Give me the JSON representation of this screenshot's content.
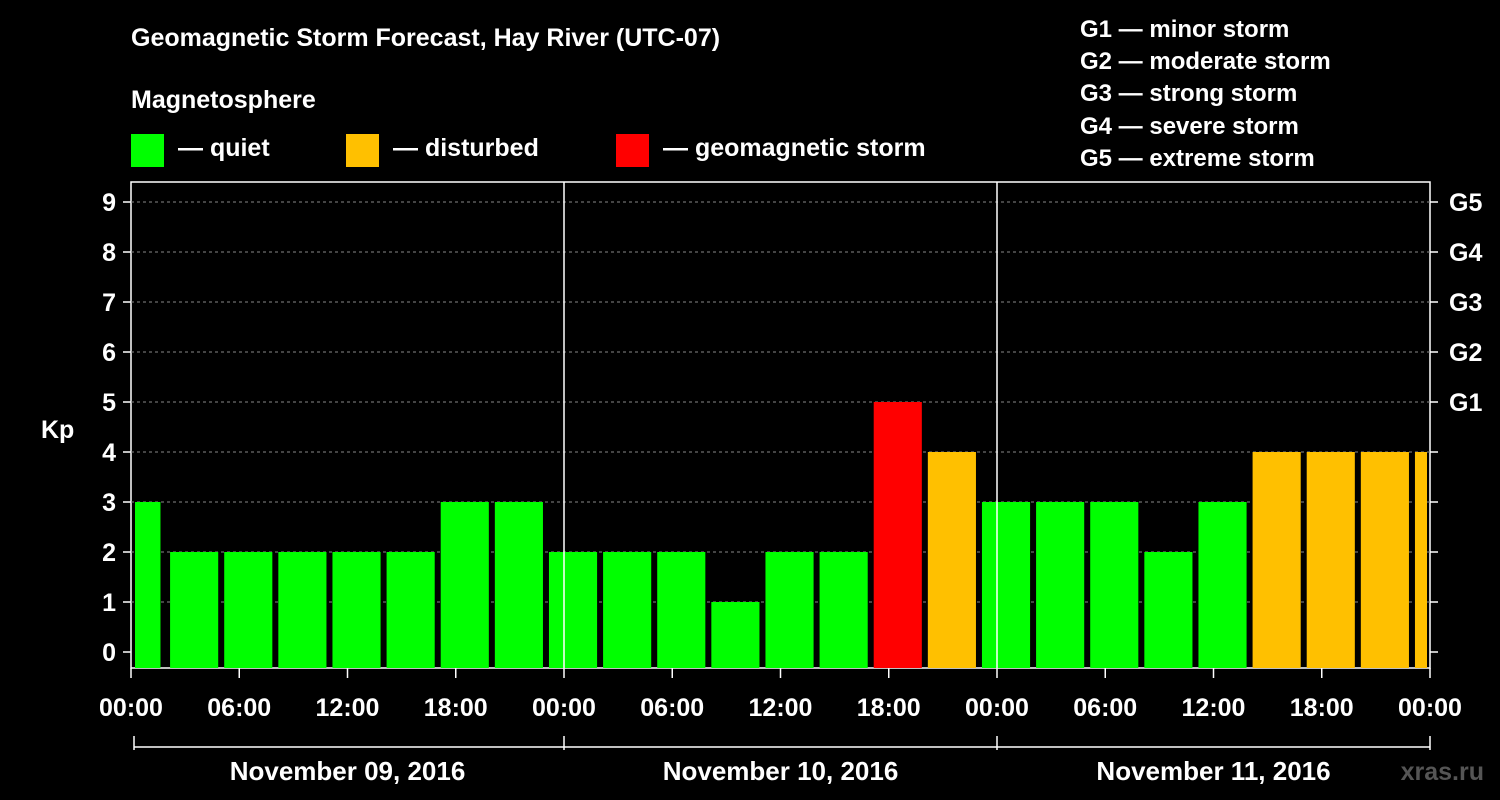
{
  "title": "Geomagnetic Storm Forecast, Hay River (UTC-07)",
  "legend": {
    "heading": "Magnetosphere",
    "items": [
      {
        "label": "— quiet",
        "color": "#00ff00"
      },
      {
        "label": "— disturbed",
        "color": "#ffc000"
      },
      {
        "label": "— geomagnetic storm",
        "color": "#ff0000"
      }
    ]
  },
  "storm_scale": [
    "G1 — minor storm",
    "G2 — moderate storm",
    "G3 — strong storm",
    "G4 — severe storm",
    "G5 — extreme storm"
  ],
  "watermark": "xras.ru",
  "chart_data": {
    "type": "bar",
    "ylabel": "Kp",
    "ylim": [
      0,
      9
    ],
    "yticks": [
      "0",
      "1",
      "2",
      "3",
      "4",
      "5",
      "6",
      "7",
      "8",
      "9"
    ],
    "right_ticks": [
      {
        "value": 5,
        "label": "G1"
      },
      {
        "value": 6,
        "label": "G2"
      },
      {
        "value": 7,
        "label": "G3"
      },
      {
        "value": 8,
        "label": "G4"
      },
      {
        "value": 9,
        "label": "G5"
      }
    ],
    "xtick_labels": [
      "00:00",
      "06:00",
      "12:00",
      "18:00",
      "00:00",
      "06:00",
      "12:00",
      "18:00",
      "00:00",
      "06:00",
      "12:00",
      "18:00",
      "00:00"
    ],
    "days": [
      "November 09, 2016",
      "November 10, 2016",
      "November 11, 2016"
    ],
    "grid": true,
    "bars": [
      {
        "start_hour": 0,
        "end_hour": 1.8,
        "kp": 3,
        "color": "#00ff00"
      },
      {
        "start_hour": 2,
        "end_hour": 5,
        "kp": 2,
        "color": "#00ff00"
      },
      {
        "start_hour": 5,
        "end_hour": 8,
        "kp": 2,
        "color": "#00ff00"
      },
      {
        "start_hour": 8,
        "end_hour": 11,
        "kp": 2,
        "color": "#00ff00"
      },
      {
        "start_hour": 11,
        "end_hour": 14,
        "kp": 2,
        "color": "#00ff00"
      },
      {
        "start_hour": 14,
        "end_hour": 17,
        "kp": 2,
        "color": "#00ff00"
      },
      {
        "start_hour": 17,
        "end_hour": 20,
        "kp": 3,
        "color": "#00ff00"
      },
      {
        "start_hour": 20,
        "end_hour": 23,
        "kp": 3,
        "color": "#00ff00"
      },
      {
        "start_hour": 23,
        "end_hour": 26,
        "kp": 2,
        "color": "#00ff00"
      },
      {
        "start_hour": 26,
        "end_hour": 29,
        "kp": 2,
        "color": "#00ff00"
      },
      {
        "start_hour": 29,
        "end_hour": 32,
        "kp": 2,
        "color": "#00ff00"
      },
      {
        "start_hour": 32,
        "end_hour": 35,
        "kp": 1,
        "color": "#00ff00"
      },
      {
        "start_hour": 35,
        "end_hour": 38,
        "kp": 2,
        "color": "#00ff00"
      },
      {
        "start_hour": 38,
        "end_hour": 41,
        "kp": 2,
        "color": "#00ff00"
      },
      {
        "start_hour": 41,
        "end_hour": 44,
        "kp": 5,
        "color": "#ff0000"
      },
      {
        "start_hour": 44,
        "end_hour": 47,
        "kp": 4,
        "color": "#ffc000"
      },
      {
        "start_hour": 47,
        "end_hour": 50,
        "kp": 3,
        "color": "#00ff00"
      },
      {
        "start_hour": 50,
        "end_hour": 53,
        "kp": 3,
        "color": "#00ff00"
      },
      {
        "start_hour": 53,
        "end_hour": 56,
        "kp": 3,
        "color": "#00ff00"
      },
      {
        "start_hour": 56,
        "end_hour": 59,
        "kp": 2,
        "color": "#00ff00"
      },
      {
        "start_hour": 59,
        "end_hour": 62,
        "kp": 3,
        "color": "#00ff00"
      },
      {
        "start_hour": 62,
        "end_hour": 65,
        "kp": 4,
        "color": "#ffc000"
      },
      {
        "start_hour": 65,
        "end_hour": 68,
        "kp": 4,
        "color": "#ffc000"
      },
      {
        "start_hour": 68,
        "end_hour": 71,
        "kp": 4,
        "color": "#ffc000"
      },
      {
        "start_hour": 71,
        "end_hour": 72,
        "kp": 4,
        "color": "#ffc000"
      }
    ]
  }
}
